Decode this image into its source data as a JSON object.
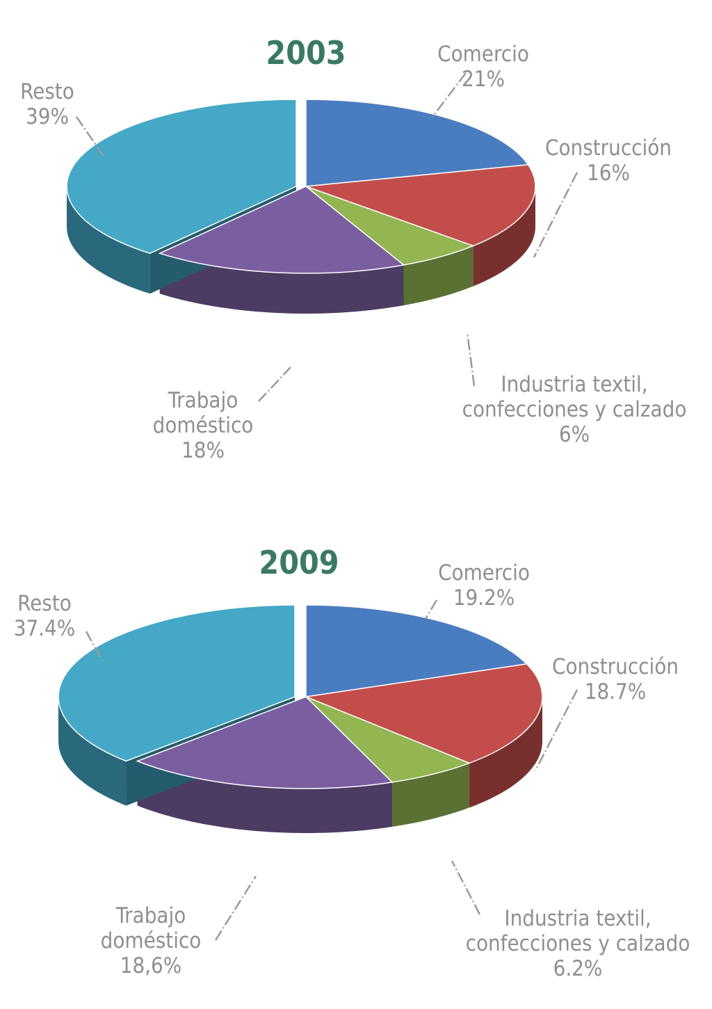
{
  "colors": {
    "title": "#3a7a63",
    "label": "#8f8f8f",
    "slices": {
      "Comercio": "#4a7cc0",
      "Construcción": "#c24d4a",
      "Industria textil, confecciones y calzado": "#93b552",
      "Trabajo doméstico": "#7a5fa0",
      "Resto": "#44a8c6"
    }
  },
  "chart_data": [
    {
      "type": "pie",
      "style": "3d-exploded",
      "title": "2003",
      "slices": [
        {
          "name": "Comercio",
          "value": 21,
          "label_lines": [
            "Comercio",
            "21%"
          ]
        },
        {
          "name": "Construcción",
          "value": 16,
          "label_lines": [
            "Construcción",
            "16%"
          ]
        },
        {
          "name": "Industria textil, confecciones y calzado",
          "value": 6,
          "label_lines": [
            "Industria textil,",
            "confecciones y calzado",
            "6%"
          ]
        },
        {
          "name": "Trabajo doméstico",
          "value": 18,
          "label_lines": [
            "Trabajo",
            "doméstico",
            "18%"
          ]
        },
        {
          "name": "Resto",
          "value": 39,
          "label_lines": [
            "Resto",
            "39%"
          ]
        }
      ]
    },
    {
      "type": "pie",
      "style": "3d-exploded",
      "title": "2009",
      "slices": [
        {
          "name": "Comercio",
          "value": 19.2,
          "label_lines": [
            "Comercio",
            "19.2%"
          ]
        },
        {
          "name": "Construcción",
          "value": 18.7,
          "label_lines": [
            "Construcción",
            "18.7%"
          ]
        },
        {
          "name": "Industria textil, confecciones y calzado",
          "value": 6.2,
          "label_lines": [
            "Industria textil,",
            "confecciones y calzado",
            "6.2%"
          ]
        },
        {
          "name": "Trabajo doméstico",
          "value": 18.6,
          "label_lines": [
            "Trabajo",
            "doméstico",
            "18,6%"
          ]
        },
        {
          "name": "Resto",
          "value": 37.4,
          "label_lines": [
            "Resto",
            "37.4%"
          ]
        }
      ]
    }
  ]
}
